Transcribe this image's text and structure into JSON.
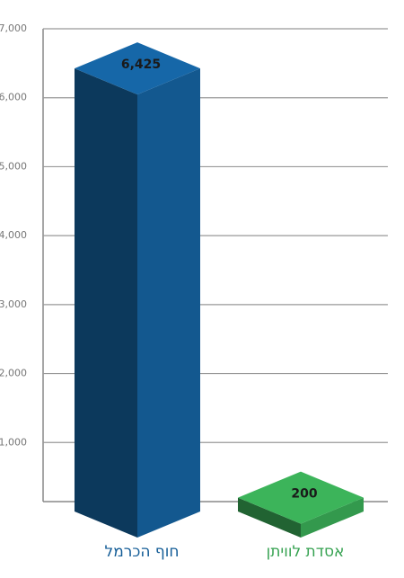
{
  "chart_data": {
    "type": "bar3d",
    "categories": [
      "חוף הכרמל",
      "אסדת לוויתן"
    ],
    "values": [
      6425,
      200
    ],
    "value_labels": [
      "6,425",
      "200"
    ],
    "colors": [
      "#1667a8",
      "#3cb45a"
    ],
    "ylim": [
      0,
      7000
    ],
    "yticks": [
      {
        "value": 1000,
        "label": "1,000"
      },
      {
        "value": 2000,
        "label": "2,000"
      },
      {
        "value": 3000,
        "label": "3,000"
      },
      {
        "value": 4000,
        "label": "4,000"
      },
      {
        "value": 5000,
        "label": "5,000"
      },
      {
        "value": 6000,
        "label": "6,000"
      },
      {
        "value": 7000,
        "label": "7,000"
      }
    ],
    "grid": true
  }
}
